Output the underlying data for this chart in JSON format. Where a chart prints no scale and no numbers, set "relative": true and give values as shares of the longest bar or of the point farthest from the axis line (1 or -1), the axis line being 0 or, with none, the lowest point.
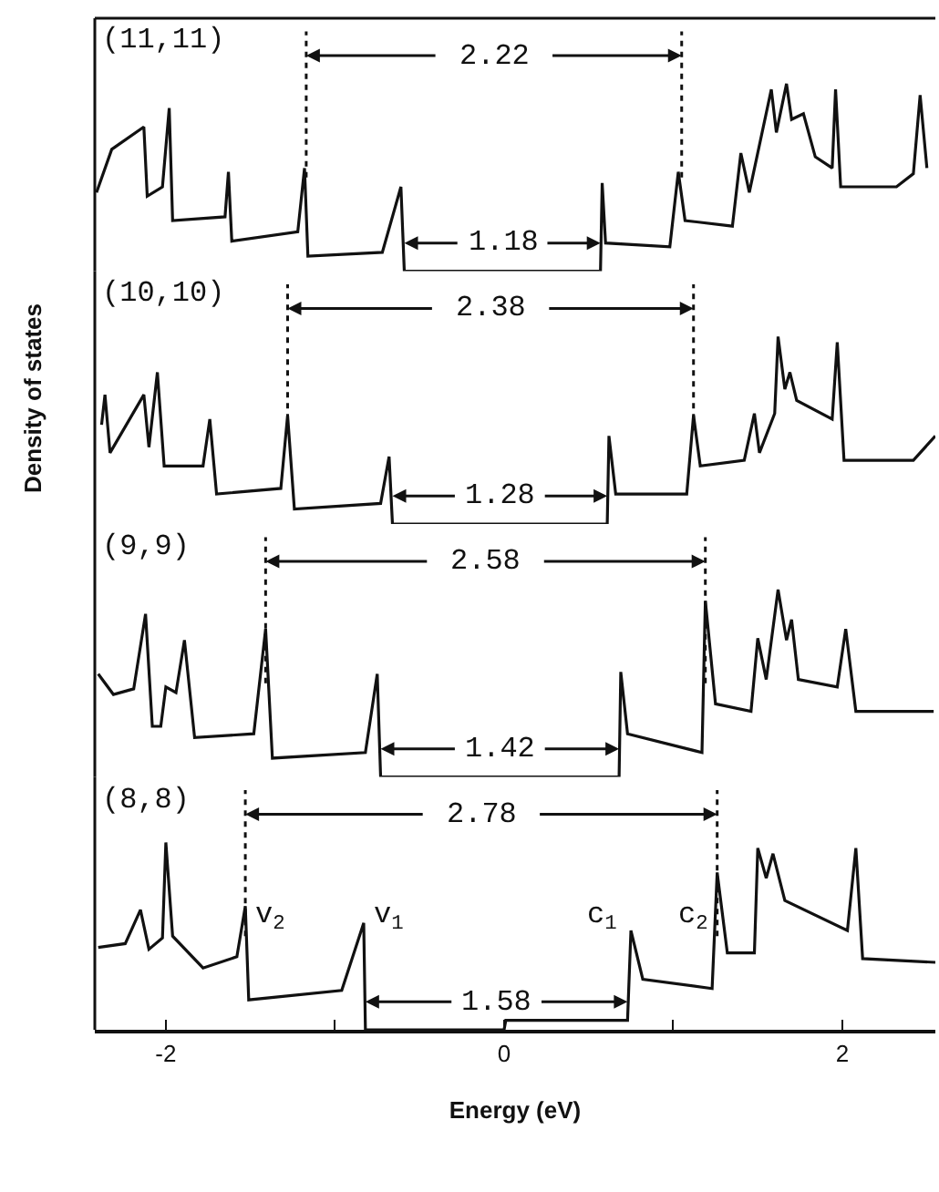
{
  "chart_data": [
    {
      "type": "line",
      "relative": true,
      "tick_labels": false,
      "xlim": [
        -2.42,
        2.55
      ],
      "x": [
        -2.41,
        -2.32,
        -2.13,
        -2.11,
        -2.02,
        -1.98,
        -1.96,
        -1.65,
        -1.63,
        -1.61,
        -1.22,
        -1.18,
        -1.16,
        -0.72,
        -0.61,
        -0.59,
        0.57,
        0.58,
        0.6,
        0.98,
        1.03,
        1.07,
        1.35,
        1.4,
        1.45,
        1.58,
        1.61,
        1.67,
        1.7,
        1.77,
        1.84,
        1.94,
        1.96,
        1.99,
        2.32,
        2.42,
        2.46,
        2.5
      ],
      "series": [
        {
          "color": "#111111",
          "values": [
            0.42,
            0.65,
            0.77,
            0.4,
            0.45,
            0.87,
            0.27,
            0.29,
            0.53,
            0.16,
            0.21,
            0.55,
            0.08,
            0.1,
            0.45,
            0,
            0,
            0.47,
            0.15,
            0.13,
            0.53,
            0.27,
            0.24,
            0.63,
            0.42,
            0.97,
            0.74,
            1.0,
            0.81,
            0.84,
            0.61,
            0.55,
            0.97,
            0.45,
            0.45,
            0.52,
            0.94,
            0.55
          ]
        }
      ],
      "ref_lines": [
        {
          "axis": "x",
          "value": -1.17,
          "line_style": "dotted"
        },
        {
          "axis": "x",
          "value": 1.05,
          "line_style": "dotted"
        }
      ],
      "annotations": [
        "(11,11)",
        "2.22",
        "1.18"
      ]
    },
    {
      "type": "line",
      "relative": true,
      "tick_labels": false,
      "ylabel": "Density of states",
      "xlim": [
        -2.42,
        2.55
      ],
      "x": [
        -2.38,
        -2.36,
        -2.33,
        -2.13,
        -2.1,
        -2.05,
        -2.01,
        -1.78,
        -1.74,
        -1.7,
        -1.32,
        -1.28,
        -1.24,
        -0.73,
        -0.68,
        -0.66,
        0.61,
        0.62,
        0.66,
        1.08,
        1.12,
        1.16,
        1.42,
        1.48,
        1.51,
        1.6,
        1.62,
        1.66,
        1.69,
        1.73,
        1.94,
        1.97,
        2.01,
        2.42,
        2.55
      ],
      "series": [
        {
          "color": "#111111",
          "values": [
            0.53,
            0.69,
            0.38,
            0.69,
            0.41,
            0.81,
            0.31,
            0.31,
            0.56,
            0.16,
            0.19,
            0.58,
            0.08,
            0.11,
            0.36,
            0,
            0,
            0.47,
            0.16,
            0.16,
            0.58,
            0.31,
            0.34,
            0.59,
            0.38,
            0.59,
            1.0,
            0.72,
            0.81,
            0.66,
            0.56,
            0.97,
            0.34,
            0.34,
            0.47
          ]
        }
      ],
      "ref_lines": [
        {
          "axis": "x",
          "value": -1.28,
          "line_style": "dotted"
        },
        {
          "axis": "x",
          "value": 1.12,
          "line_style": "dotted"
        }
      ],
      "annotations": [
        "(10,10)",
        "2.38",
        "1.28"
      ]
    },
    {
      "type": "line",
      "relative": true,
      "tick_labels": false,
      "xlim": [
        -2.42,
        2.55
      ],
      "x": [
        -2.4,
        -2.31,
        -2.19,
        -2.12,
        -2.08,
        -2.03,
        -2.0,
        -1.94,
        -1.89,
        -1.83,
        -1.48,
        -1.41,
        -1.37,
        -0.82,
        -0.75,
        -0.73,
        0.68,
        0.69,
        0.73,
        1.17,
        1.19,
        1.25,
        1.46,
        1.5,
        1.55,
        1.62,
        1.67,
        1.7,
        1.74,
        1.97,
        2.02,
        2.08,
        2.54
      ],
      "series": [
        {
          "color": "#111111",
          "values": [
            0.55,
            0.44,
            0.47,
            0.87,
            0.27,
            0.27,
            0.48,
            0.45,
            0.73,
            0.21,
            0.23,
            0.79,
            0.1,
            0.13,
            0.55,
            0,
            0,
            0.56,
            0.23,
            0.13,
            0.94,
            0.39,
            0.35,
            0.74,
            0.52,
            1.0,
            0.73,
            0.84,
            0.52,
            0.48,
            0.79,
            0.35,
            0.35
          ]
        }
      ],
      "ref_lines": [
        {
          "axis": "x",
          "value": -1.41,
          "line_style": "dotted"
        },
        {
          "axis": "x",
          "value": 1.19,
          "line_style": "dotted"
        }
      ],
      "annotations": [
        "(9,9)",
        "2.58",
        "1.42"
      ]
    },
    {
      "type": "line",
      "relative": true,
      "tick_labels": "x",
      "xlabel": "Energy (eV)",
      "xlim": [
        -2.42,
        2.55
      ],
      "xticks": [
        -2,
        {
          "value": -1,
          "label": null
        },
        0,
        {
          "value": 1,
          "label": null
        },
        2
      ],
      "x": [
        -2.4,
        -2.24,
        -2.15,
        -2.1,
        -2.02,
        -2.0,
        -1.96,
        -1.78,
        -1.58,
        -1.53,
        -1.51,
        -0.96,
        -0.83,
        -0.82,
        0.0,
        0.01,
        0.73,
        0.75,
        0.82,
        1.23,
        1.26,
        1.32,
        1.48,
        1.5,
        1.55,
        1.59,
        1.66,
        2.03,
        2.08,
        2.12,
        2.55
      ],
      "series": [
        {
          "color": "#111111",
          "values": [
            0.44,
            0.46,
            0.64,
            0.43,
            0.49,
            1.0,
            0.5,
            0.33,
            0.39,
            0.66,
            0.16,
            0.21,
            0.57,
            0,
            0,
            0.05,
            0.05,
            0.53,
            0.27,
            0.22,
            0.84,
            0.41,
            0.41,
            0.97,
            0.81,
            0.94,
            0.69,
            0.53,
            0.97,
            0.38,
            0.36
          ]
        }
      ],
      "ref_lines": [
        {
          "axis": "x",
          "value": -1.53,
          "line_style": "dotted"
        },
        {
          "axis": "x",
          "value": 1.26,
          "line_style": "dotted"
        }
      ],
      "annotations": [
        "(8,8)",
        "2.78",
        "1.58",
        "v$_{2}$",
        "v$_{1}$",
        "c$_{1}$",
        "c$_{2}$"
      ]
    }
  ]
}
